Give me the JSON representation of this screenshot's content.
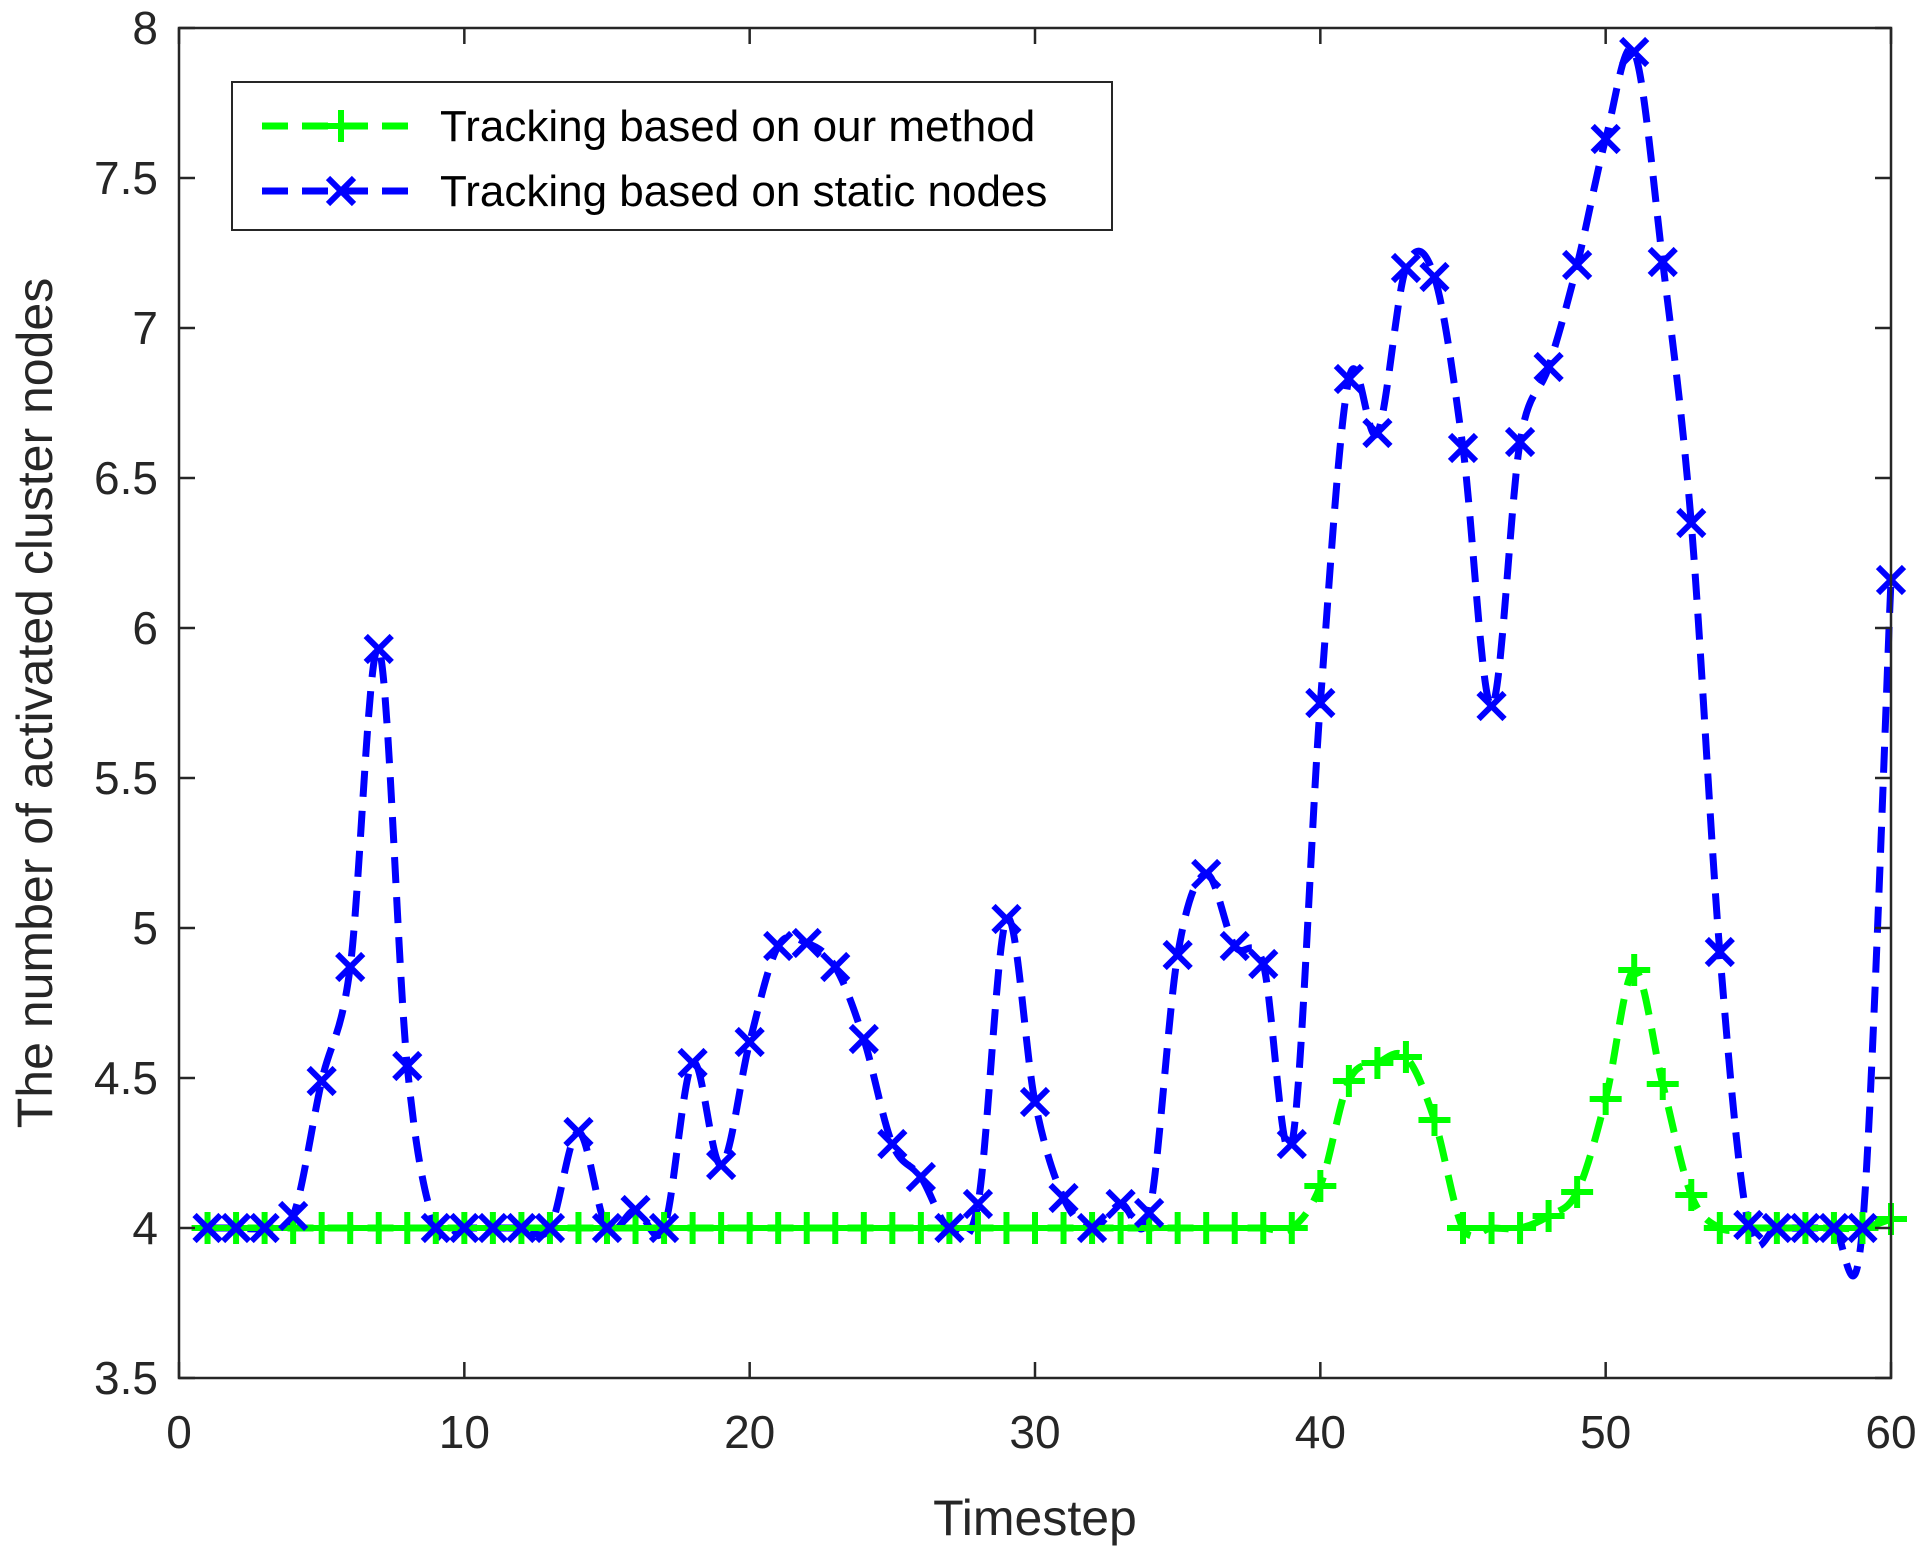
{
  "chart_data": {
    "type": "line",
    "title": "",
    "xlabel": "Timestep",
    "ylabel": "The number of activated cluster nodes",
    "xlim": [
      0,
      60
    ],
    "ylim": [
      3.5,
      8
    ],
    "xticks": [
      0,
      10,
      20,
      30,
      40,
      50,
      60
    ],
    "yticks": [
      3.5,
      4,
      4.5,
      5,
      5.5,
      6,
      6.5,
      7,
      7.5,
      8
    ],
    "xtick_labels": [
      "0",
      "10",
      "20",
      "30",
      "40",
      "50",
      "60"
    ],
    "ytick_labels": [
      "3.5",
      "4",
      "4.5",
      "5",
      "5.5",
      "6",
      "6.5",
      "7",
      "7.5",
      "8"
    ],
    "grid": false,
    "legend_position": "top-left",
    "x": [
      1,
      2,
      3,
      4,
      5,
      6,
      7,
      8,
      9,
      10,
      11,
      12,
      13,
      14,
      15,
      16,
      17,
      18,
      19,
      20,
      21,
      22,
      23,
      24,
      25,
      26,
      27,
      28,
      29,
      30,
      31,
      32,
      33,
      34,
      35,
      36,
      37,
      38,
      39,
      40,
      41,
      42,
      43,
      44,
      45,
      46,
      47,
      48,
      49,
      50,
      51,
      52,
      53,
      54,
      55,
      56,
      57,
      58,
      59,
      60
    ],
    "series": [
      {
        "name": "Tracking based on our method",
        "color": "#00ff00",
        "marker": "plus",
        "line_style": "dashed",
        "values": [
          4,
          4,
          4,
          4,
          4,
          4,
          4,
          4,
          4,
          4,
          4,
          4,
          4,
          4,
          4,
          4,
          4,
          4,
          4,
          4,
          4,
          4,
          4,
          4,
          4,
          4,
          4,
          4,
          4,
          4,
          4,
          4,
          4,
          4,
          4,
          4,
          4,
          4,
          4,
          4.14,
          4.49,
          4.55,
          4.57,
          4.36,
          4,
          4,
          4,
          4.04,
          4.12,
          4.43,
          4.86,
          4.48,
          4.11,
          4,
          4,
          4,
          4,
          4,
          4,
          4.03
        ]
      },
      {
        "name": "Tracking based on static nodes",
        "color": "#0000ff",
        "marker": "x",
        "line_style": "dashed",
        "values": [
          4,
          4,
          4,
          4.04,
          4.49,
          4.87,
          5.93,
          4.54,
          4,
          4,
          4,
          4,
          4,
          4.32,
          4,
          4.06,
          4,
          4.55,
          4.21,
          4.62,
          4.94,
          4.95,
          4.87,
          4.63,
          4.28,
          4.17,
          4,
          4.08,
          5.03,
          4.42,
          4.1,
          4,
          4.08,
          4.05,
          4.91,
          5.18,
          4.94,
          4.88,
          4.28,
          5.75,
          6.83,
          6.65,
          7.2,
          7.17,
          6.6,
          5.74,
          6.62,
          6.87,
          7.21,
          7.63,
          7.92,
          7.22,
          6.35,
          4.92,
          4.01,
          4,
          4,
          4,
          4,
          6.16
        ]
      }
    ]
  }
}
